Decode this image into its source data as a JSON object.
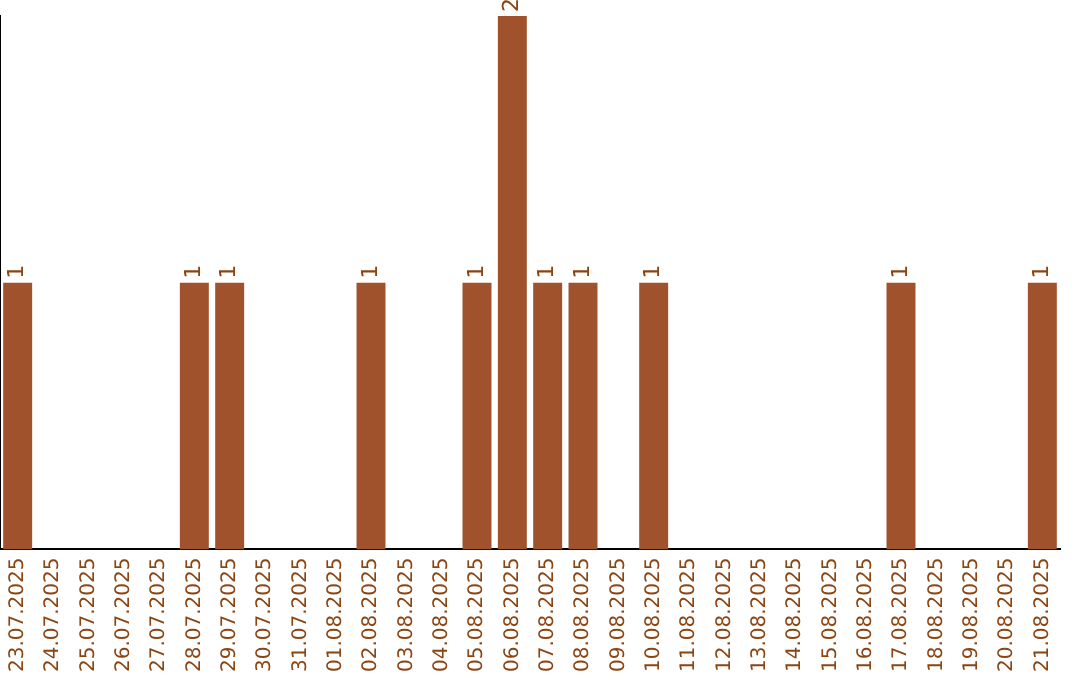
{
  "chart_data": {
    "type": "bar",
    "categories": [
      "23.07.2025",
      "24.07.2025",
      "25.07.2025",
      "26.07.2025",
      "27.07.2025",
      "28.07.2025",
      "29.07.2025",
      "30.07.2025",
      "31.07.2025",
      "01.08.2025",
      "02.08.2025",
      "03.08.2025",
      "04.08.2025",
      "05.08.2025",
      "06.08.2025",
      "07.08.2025",
      "08.08.2025",
      "09.08.2025",
      "10.08.2025",
      "11.08.2025",
      "12.08.2025",
      "13.08.2025",
      "14.08.2025",
      "15.08.2025",
      "16.08.2025",
      "17.08.2025",
      "18.08.2025",
      "19.08.2025",
      "20.08.2025",
      "21.08.2025"
    ],
    "values": [
      1,
      null,
      null,
      null,
      null,
      1,
      1,
      null,
      null,
      null,
      1,
      null,
      null,
      1,
      2,
      1,
      1,
      null,
      1,
      null,
      null,
      null,
      null,
      null,
      null,
      1,
      null,
      null,
      null,
      1
    ],
    "color": "#a0522d",
    "data_labels": true,
    "grid": false,
    "legend": false,
    "tick_labels": "x"
  }
}
